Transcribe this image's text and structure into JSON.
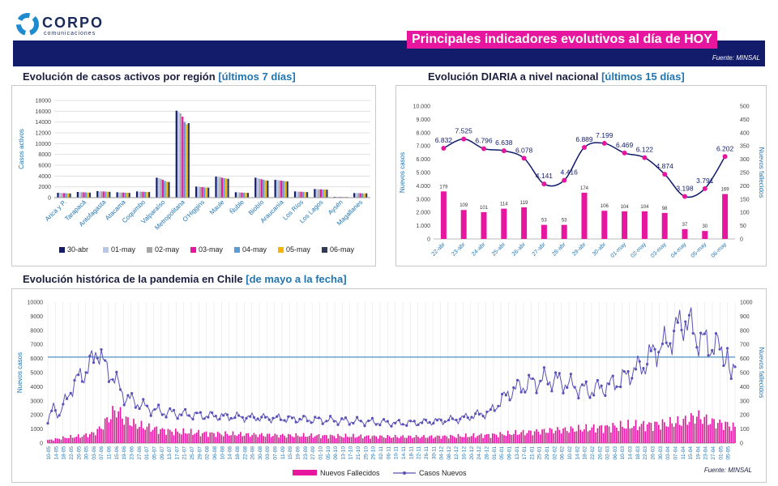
{
  "header": {
    "logo_name": "CORPO",
    "logo_sub": "comunicaciones",
    "title": "Principales indicadores evolutivos al día de HOY",
    "source_label": "Fuente:",
    "source_value": "MINSAL"
  },
  "colors": {
    "banner": "#121c6b",
    "title_bg": "#e6179e",
    "magenta": "#e6179e",
    "line": "#5a52b8",
    "accent": "#2175b3"
  },
  "charts": {
    "regional": {
      "title": "Evolución de casos activos por región",
      "title_accent": "[últimos 7 días]"
    },
    "daily": {
      "title": "Evolución DIARIA a nivel nacional",
      "title_accent": "[últimos 15 días]"
    },
    "history": {
      "title": "Evolución histórica de la pandemia en Chile",
      "title_accent": "[de mayo a la fecha]"
    }
  },
  "footer": {
    "source_label": "Fuente:",
    "source_value": "MINSAL"
  },
  "chart_data": [
    {
      "type": "bar",
      "ylabel": "Casos activos",
      "ylim": [
        0,
        18000
      ],
      "yticks": [
        0,
        2000,
        4000,
        6000,
        8000,
        10000,
        12000,
        14000,
        16000,
        18000
      ],
      "legend_position": "bottom",
      "grid": true,
      "categories": [
        "Arica y P.",
        "Tarapacá",
        "Antofagasta",
        "Atacama",
        "Coquimbo",
        "Valparaíso",
        "Metropolitana",
        "O'Higgins",
        "Maule",
        "Ñuble",
        "Biobío",
        "Araucanía",
        "Los Ríos",
        "Los Lagos",
        "Aysén",
        "Magallanes"
      ],
      "series": [
        {
          "name": "30-abr",
          "color": "#121c6b",
          "values": [
            900,
            1050,
            1200,
            1000,
            1150,
            3700,
            16100,
            2050,
            3900,
            1000,
            3700,
            3300,
            1150,
            1600,
            150,
            850
          ]
        },
        {
          "name": "01-may",
          "color": "#b9c7e6",
          "values": [
            880,
            1030,
            1180,
            980,
            1130,
            3600,
            15900,
            2000,
            3850,
            980,
            3600,
            3250,
            1130,
            1580,
            150,
            840
          ]
        },
        {
          "name": "02-may",
          "color": "#a6a6a6",
          "values": [
            860,
            1010,
            1160,
            960,
            1110,
            3500,
            15600,
            1980,
            3800,
            960,
            3500,
            3200,
            1110,
            1560,
            140,
            830
          ]
        },
        {
          "name": "03-may",
          "color": "#e6179e",
          "values": [
            840,
            990,
            1140,
            940,
            1090,
            3300,
            15000,
            1950,
            3700,
            940,
            3400,
            3150,
            1090,
            1540,
            140,
            820
          ]
        },
        {
          "name": "04-may",
          "color": "#5b9bd5",
          "values": [
            820,
            970,
            1120,
            920,
            1070,
            3100,
            14000,
            1900,
            3600,
            920,
            3300,
            3100,
            1070,
            1520,
            130,
            810
          ]
        },
        {
          "name": "05-may",
          "color": "#f4b400",
          "values": [
            800,
            950,
            1100,
            900,
            1050,
            2950,
            13600,
            1870,
            3550,
            900,
            3200,
            3050,
            1050,
            1500,
            130,
            800
          ]
        },
        {
          "name": "06-may",
          "color": "#2f3a57",
          "values": [
            780,
            930,
            1080,
            880,
            1030,
            2900,
            13800,
            1850,
            3500,
            880,
            3150,
            3000,
            1030,
            1480,
            120,
            790
          ]
        }
      ]
    },
    {
      "type": "bar+line",
      "ylabel_left": "Nuevos casos",
      "ylabel_right": "Nuevos fallecidos",
      "ylim_left": [
        0,
        10000
      ],
      "ylim_right": [
        0,
        500
      ],
      "yticks_left": [
        "0",
        "1.000",
        "2.000",
        "3.000",
        "4.000",
        "5.000",
        "6.000",
        "7.000",
        "8.000",
        "9.000",
        "10.000"
      ],
      "yticks_right": [
        0,
        50,
        100,
        150,
        200,
        250,
        300,
        350,
        400,
        450,
        500
      ],
      "categories": [
        "22-abr",
        "23-abr",
        "24-abr",
        "25-abr",
        "26-abr",
        "27-abr",
        "28-abr",
        "29-abr",
        "30-abr",
        "01-may",
        "02-may",
        "03-may",
        "04-may",
        "05-may",
        "06-may"
      ],
      "cases": [
        6832,
        7525,
        6796,
        6638,
        6078,
        4141,
        4416,
        6889,
        7199,
        6469,
        6122,
        4874,
        3198,
        3791,
        6202
      ],
      "case_labels": [
        "6.832",
        "7.525",
        "6.796",
        "6.638",
        "6.078",
        "4.141",
        "4.416",
        "6.889",
        "7.199",
        "6.469",
        "6.122",
        "4.874",
        "3.198",
        "3.791",
        "6.202"
      ],
      "deaths": [
        179,
        109,
        101,
        114,
        119,
        53,
        53,
        174,
        106,
        104,
        104,
        98,
        37,
        30,
        169
      ]
    },
    {
      "type": "bar+line",
      "legend": [
        "Nuevos Fallecidos",
        "Casos Nuevos"
      ],
      "legend_position": "bottom",
      "ylim_left": [
        0,
        10000
      ],
      "ylim_right": [
        0,
        1000
      ],
      "ylabel_left": "Nuevos casos",
      "ylabel_right": "Nuevos fallecidos",
      "yticks_left": [
        0,
        1000,
        2000,
        3000,
        4000,
        5000,
        6000,
        7000,
        8000,
        9000,
        10000
      ],
      "yticks_right": [
        0,
        100,
        200,
        300,
        400,
        500,
        600,
        700,
        800,
        900,
        1000
      ],
      "reference_line": 6100,
      "x_labels": [
        "10-05",
        "14-05",
        "18-05",
        "22-05",
        "26-05",
        "30-05",
        "03-06",
        "07-06",
        "11-06",
        "15-06",
        "19-06",
        "23-06",
        "27-06",
        "01-07",
        "05-07",
        "09-07",
        "13-07",
        "17-07",
        "21-07",
        "25-07",
        "29-07",
        "02-08",
        "06-08",
        "10-08",
        "14-08",
        "18-08",
        "22-08",
        "26-08",
        "30-08",
        "03-09",
        "07-09",
        "11-09",
        "15-09",
        "19-09",
        "23-09",
        "27-09",
        "01-10",
        "05-10",
        "09-10",
        "13-10",
        "17-10",
        "21-10",
        "25-10",
        "29-10",
        "02-11",
        "06-11",
        "10-11",
        "14-11",
        "18-11",
        "22-11",
        "26-11",
        "30-11",
        "04-12",
        "08-12",
        "12-12",
        "16-12",
        "20-12",
        "24-12",
        "28-12",
        "01-01",
        "05-01",
        "09-01",
        "13-01",
        "17-01",
        "21-01",
        "25-01",
        "29-01",
        "02-02",
        "06-02",
        "10-02",
        "14-02",
        "18-02",
        "22-02",
        "26-02",
        "02-03",
        "06-03",
        "10-03",
        "14-03",
        "18-03",
        "22-03",
        "26-03",
        "30-03",
        "03-04",
        "07-04",
        "11-04",
        "15-04",
        "19-04",
        "23-04",
        "27-04",
        "01-05",
        "05-05"
      ],
      "cases_keypoints": [
        [
          0,
          1400
        ],
        [
          3,
          2600
        ],
        [
          6,
          2000
        ],
        [
          12,
          3800
        ],
        [
          16,
          4600
        ],
        [
          20,
          5100
        ],
        [
          24,
          5900
        ],
        [
          26,
          6900
        ],
        [
          30,
          5300
        ],
        [
          34,
          4800
        ],
        [
          40,
          3300
        ],
        [
          46,
          2900
        ],
        [
          52,
          2500
        ],
        [
          60,
          2200
        ],
        [
          75,
          2000
        ],
        [
          90,
          1900
        ],
        [
          110,
          1800
        ],
        [
          130,
          1700
        ],
        [
          150,
          1600
        ],
        [
          170,
          1500
        ],
        [
          185,
          1400
        ],
        [
          200,
          1500
        ],
        [
          215,
          1700
        ],
        [
          225,
          2000
        ],
        [
          232,
          2200
        ],
        [
          238,
          3100
        ],
        [
          244,
          3800
        ],
        [
          252,
          4200
        ],
        [
          260,
          4500
        ],
        [
          268,
          4400
        ],
        [
          276,
          4000
        ],
        [
          284,
          3700
        ],
        [
          292,
          4000
        ],
        [
          300,
          4400
        ],
        [
          306,
          5100
        ],
        [
          312,
          5500
        ],
        [
          318,
          6600
        ],
        [
          324,
          7000
        ],
        [
          330,
          8200
        ],
        [
          334,
          8800
        ],
        [
          340,
          7500
        ],
        [
          346,
          7000
        ],
        [
          352,
          6700
        ],
        [
          356,
          6300
        ],
        [
          358,
          4000
        ],
        [
          360,
          6200
        ]
      ],
      "deaths_keypoints": [
        [
          0,
          20
        ],
        [
          10,
          40
        ],
        [
          18,
          50
        ],
        [
          24,
          70
        ],
        [
          28,
          110
        ],
        [
          32,
          180
        ],
        [
          36,
          240
        ],
        [
          40,
          170
        ],
        [
          46,
          130
        ],
        [
          56,
          100
        ],
        [
          66,
          80
        ],
        [
          90,
          65
        ],
        [
          120,
          55
        ],
        [
          150,
          50
        ],
        [
          180,
          45
        ],
        [
          200,
          45
        ],
        [
          220,
          50
        ],
        [
          236,
          60
        ],
        [
          250,
          75
        ],
        [
          264,
          90
        ],
        [
          280,
          100
        ],
        [
          296,
          115
        ],
        [
          310,
          125
        ],
        [
          322,
          135
        ],
        [
          332,
          150
        ],
        [
          340,
          190
        ],
        [
          348,
          150
        ],
        [
          356,
          130
        ],
        [
          360,
          110
        ]
      ]
    }
  ]
}
